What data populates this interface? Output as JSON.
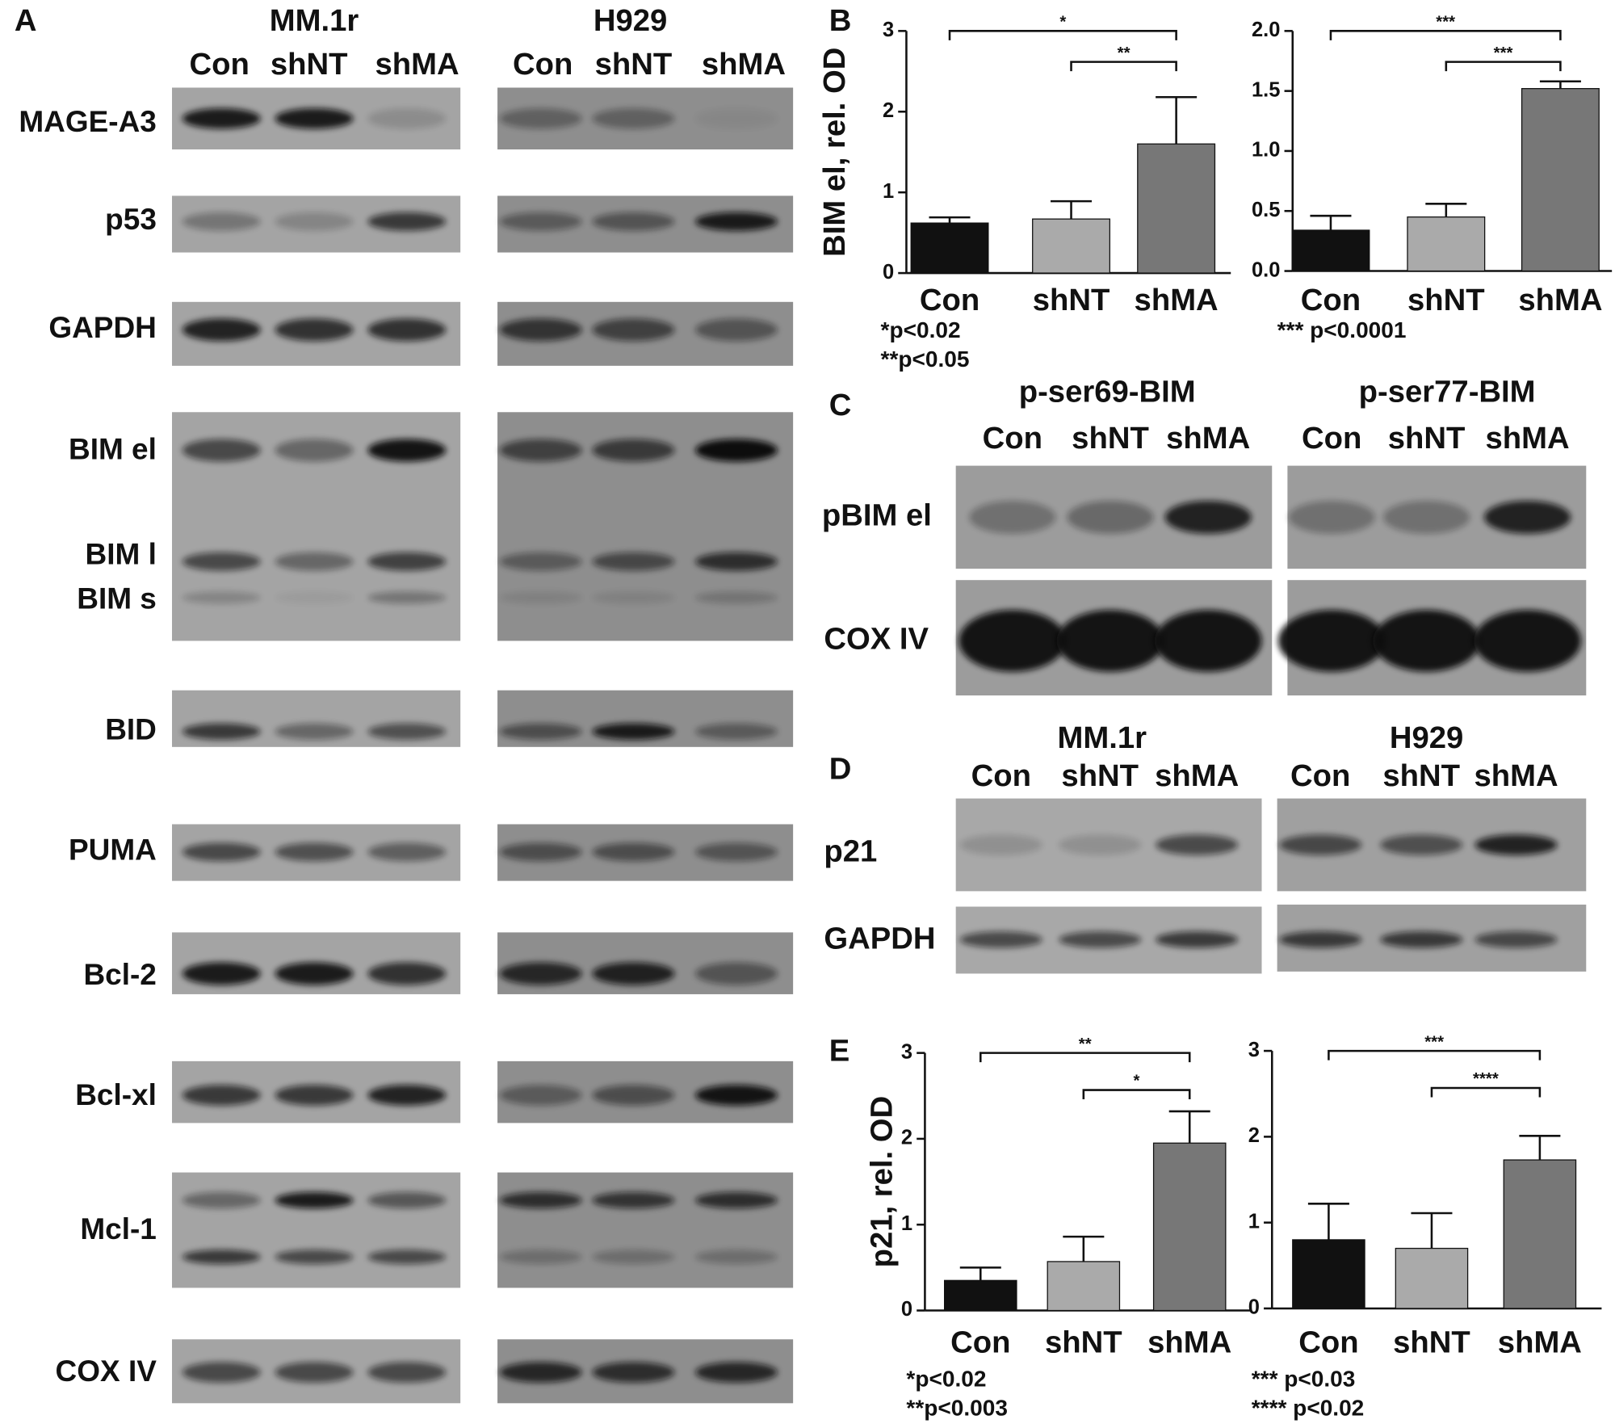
{
  "figure": {
    "panel_a": {
      "letter": "A",
      "cell_lines": [
        "MM.1r",
        "H929"
      ],
      "lanes": [
        "Con",
        "shNT",
        "shMA",
        "Con",
        "shNT",
        "shMA"
      ],
      "proteins": [
        "MAGE-A3",
        "p53",
        "GAPDH",
        "BIM el",
        "BIM l",
        "BIM s",
        "BID",
        "PUMA",
        "Bcl-2",
        "Bcl-xl",
        "Mcl-1",
        "COX IV"
      ]
    },
    "panel_b": {
      "letter": "B"
    },
    "panel_c": {
      "letter": "C",
      "groups": [
        "p-ser69-BIM",
        "p-ser77-BIM"
      ],
      "lanes": [
        "Con",
        "shNT",
        "shMA",
        "Con",
        "shNT",
        "shMA"
      ],
      "proteins": [
        "pBIM el",
        "COX IV"
      ]
    },
    "panel_d": {
      "letter": "D",
      "cell_lines": [
        "MM.1r",
        "H929"
      ],
      "lanes": [
        "Con",
        "shNT",
        "shMA",
        "Con",
        "shNT",
        "shMA"
      ],
      "proteins": [
        "p21",
        "GAPDH"
      ]
    },
    "panel_e": {
      "letter": "E"
    }
  },
  "chart_data": [
    {
      "type": "bar",
      "ylabel": "BIM el, rel. OD",
      "categories": [
        "Con",
        "shNT",
        "shMA"
      ],
      "values": [
        0.62,
        0.67,
        1.6
      ],
      "errors": [
        0.07,
        0.22,
        0.58
      ],
      "colors": [
        "#111111",
        "#aaaaaa",
        "#777777"
      ],
      "ylim": [
        0,
        3
      ],
      "yticks": [
        0,
        1,
        2,
        3
      ],
      "significance": [
        "*",
        "**"
      ],
      "footnotes": [
        "*p<0.02",
        "**p<0.05"
      ]
    },
    {
      "type": "bar",
      "categories": [
        "Con",
        "shNT",
        "shMA"
      ],
      "values": [
        0.34,
        0.45,
        1.52
      ],
      "errors": [
        0.12,
        0.11,
        0.06
      ],
      "colors": [
        "#111111",
        "#aaaaaa",
        "#777777"
      ],
      "ylim": [
        0,
        2
      ],
      "yticks": [
        {
          "value": 0,
          "label": "0.0"
        },
        {
          "value": 0.5,
          "label": "0.5"
        },
        {
          "value": 1,
          "label": "1.0"
        },
        {
          "value": 1.5,
          "label": "1.5"
        },
        {
          "value": 2,
          "label": "2.0"
        }
      ],
      "significance": [
        "***",
        "***"
      ],
      "footnotes": [
        "*** p<0.0001"
      ]
    },
    {
      "type": "bar",
      "ylabel": "p21, rel. OD",
      "categories": [
        "Con",
        "shNT",
        "shMA"
      ],
      "values": [
        0.35,
        0.57,
        1.95
      ],
      "errors": [
        0.15,
        0.29,
        0.37
      ],
      "colors": [
        "#111111",
        "#aaaaaa",
        "#777777"
      ],
      "ylim": [
        0,
        3
      ],
      "yticks": [
        0,
        1,
        2,
        3
      ],
      "significance": [
        "**",
        "*"
      ],
      "footnotes": [
        "*p<0.02",
        "**p<0.003"
      ]
    },
    {
      "type": "bar",
      "categories": [
        "Con",
        "shNT",
        "shMA"
      ],
      "values": [
        0.8,
        0.7,
        1.73
      ],
      "errors": [
        0.42,
        0.41,
        0.28
      ],
      "colors": [
        "#111111",
        "#aaaaaa",
        "#777777"
      ],
      "ylim": [
        0,
        3
      ],
      "yticks": [
        0,
        1,
        2,
        3
      ],
      "significance": [
        "***",
        "****"
      ],
      "footnotes": [
        "*** p<0.03",
        "**** p<0.02"
      ]
    }
  ]
}
